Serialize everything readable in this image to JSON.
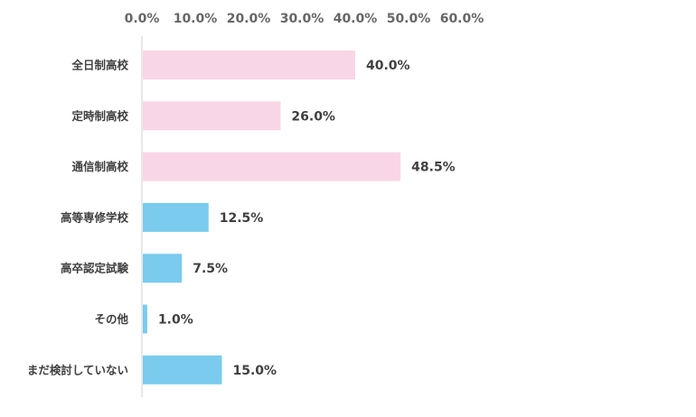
{
  "chart_data": {
    "type": "bar",
    "orientation": "horizontal",
    "title": "",
    "xlabel": "",
    "ylabel": "",
    "axis_position": "top",
    "grid": false,
    "xlim": [
      0,
      60
    ],
    "ticks": [
      "0.0%",
      "10.0%",
      "20.0%",
      "30.0%",
      "40.0%",
      "50.0%",
      "60.0%"
    ],
    "tick_values": [
      0,
      10,
      20,
      30,
      40,
      50,
      60
    ],
    "categories": [
      "全日制高校",
      "定時制高校",
      "通信制高校",
      "高等専修学校",
      "高卒認定試験",
      "その他",
      "まだ検討していない"
    ],
    "values": [
      40.0,
      26.0,
      48.5,
      12.5,
      7.5,
      1.0,
      15.0
    ],
    "value_labels": [
      "40.0%",
      "26.0%",
      "48.5%",
      "12.5%",
      "7.5%",
      "1.0%",
      "15.0%"
    ],
    "bar_colors": [
      "#f9d6e7",
      "#f9d6e7",
      "#f9d6e7",
      "#7acbee",
      "#7acbee",
      "#7acbee",
      "#7acbee"
    ],
    "axis_color": "#d0d0d0"
  }
}
